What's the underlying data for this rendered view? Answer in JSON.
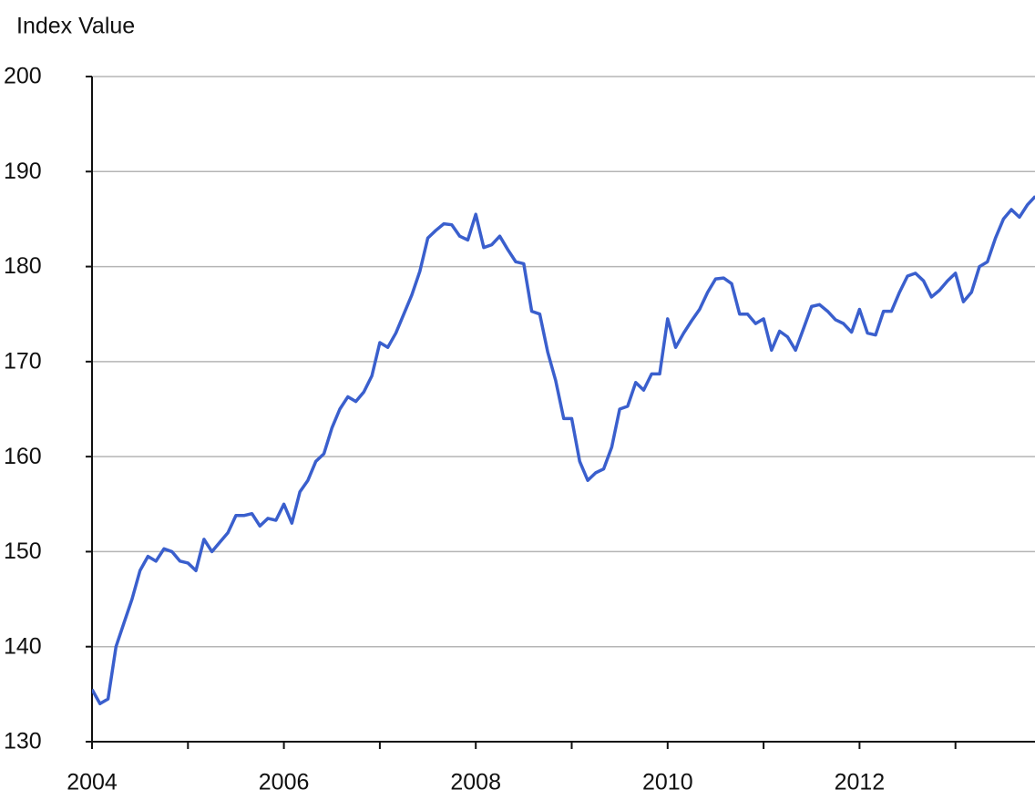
{
  "chart_data": {
    "type": "line",
    "y_label": "Index Value",
    "color": "#3a5fcd",
    "grid": true,
    "x": [
      2004,
      2004.083,
      2004.167,
      2004.25,
      2004.333,
      2004.417,
      2004.5,
      2004.583,
      2004.667,
      2004.75,
      2004.833,
      2004.917,
      2005,
      2005.083,
      2005.167,
      2005.25,
      2005.333,
      2005.417,
      2005.5,
      2005.583,
      2005.667,
      2005.75,
      2005.833,
      2005.917,
      2006,
      2006.083,
      2006.167,
      2006.25,
      2006.333,
      2006.417,
      2006.5,
      2006.583,
      2006.667,
      2006.75,
      2006.833,
      2006.917,
      2007,
      2007.083,
      2007.167,
      2007.25,
      2007.333,
      2007.417,
      2007.5,
      2007.583,
      2007.667,
      2007.75,
      2007.833,
      2007.917,
      2008,
      2008.083,
      2008.167,
      2008.25,
      2008.333,
      2008.417,
      2008.5,
      2008.583,
      2008.667,
      2008.75,
      2008.833,
      2008.917,
      2009,
      2009.083,
      2009.167,
      2009.25,
      2009.333,
      2009.417,
      2009.5,
      2009.583,
      2009.667,
      2009.75,
      2009.833,
      2009.917,
      2010,
      2010.083,
      2010.167,
      2010.25,
      2010.333,
      2010.417,
      2010.5,
      2010.583,
      2010.667,
      2010.75,
      2010.833,
      2010.917,
      2011,
      2011.083,
      2011.167,
      2011.25,
      2011.333,
      2011.417,
      2011.5,
      2011.583,
      2011.667,
      2011.75,
      2011.833,
      2011.917,
      2012,
      2012.083,
      2012.167,
      2012.25,
      2012.333,
      2012.417,
      2012.5,
      2012.583,
      2012.667,
      2012.75,
      2012.833,
      2012.917,
      2013,
      2013.083,
      2013.167,
      2013.25,
      2013.333,
      2013.417,
      2013.5,
      2013.583,
      2013.667,
      2013.75,
      2013.833
    ],
    "values": [
      135.5,
      134,
      134.5,
      140,
      142.5,
      145,
      148,
      149.5,
      149,
      150.3,
      150,
      149,
      148.8,
      148,
      151.3,
      150,
      151,
      152,
      153.8,
      153.8,
      154,
      152.7,
      153.5,
      153.3,
      155,
      153,
      156.3,
      157.5,
      159.5,
      160.3,
      163,
      165,
      166.3,
      165.8,
      166.8,
      168.5,
      172,
      171.5,
      173,
      175,
      177,
      179.5,
      183,
      183.8,
      184.5,
      184.4,
      183.2,
      182.8,
      185.5,
      182,
      182.3,
      183.2,
      181.8,
      180.5,
      180.3,
      175.3,
      175,
      171,
      168,
      164,
      164,
      159.5,
      157.5,
      158.3,
      158.7,
      161,
      165,
      165.3,
      167.8,
      167,
      168.7,
      168.7,
      174.5,
      171.5,
      173,
      174.3,
      175.5,
      177.3,
      178.7,
      178.8,
      178.2,
      175,
      175,
      174,
      174.5,
      171.2,
      173.2,
      172.6,
      171.2,
      173.5,
      175.8,
      176,
      175.3,
      174.4,
      174,
      173.1,
      175.5,
      173,
      172.8,
      175.3,
      175.3,
      177.3,
      179,
      179.3,
      178.5,
      176.8,
      177.5,
      178.5,
      179.3,
      176.3,
      177.3,
      180,
      180.5,
      183,
      185,
      186,
      185.2,
      186.5,
      187.4
    ],
    "xlim": [
      2004,
      2013.84
    ],
    "xticks": [
      2004,
      2006,
      2008,
      2010,
      2012
    ],
    "xminor_ticks": [
      2005,
      2007,
      2009,
      2011,
      2013
    ],
    "ylim": [
      130,
      200
    ],
    "yticks": [
      130,
      140,
      150,
      160,
      170,
      180,
      190,
      200
    ]
  }
}
